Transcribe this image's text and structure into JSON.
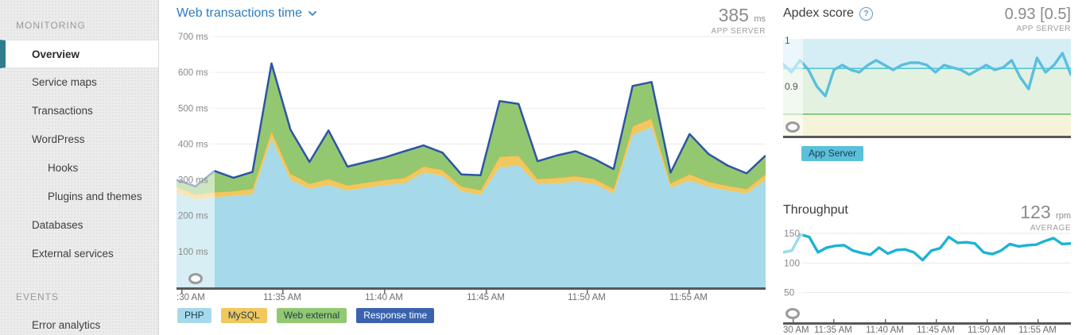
{
  "colors": {
    "accent_teal": "#2e7e8e",
    "title_link_blue": "#2e7bbf",
    "php_area": "#a6d9e9",
    "mysql_area": "#f0c85f",
    "mysql_edge": "#dcaf3c",
    "web_external_area": "#93c871",
    "response_line": "#2e55a3",
    "throughput_line": "#1cb3d4",
    "apdex_line": "#5abfdb",
    "apdex_target_line": "#3ec1c7",
    "apdex_lower_line": "#55b855",
    "band_cyan": "#d5eef6",
    "band_green": "#e3f1e1",
    "band_cream": "#f7f3da",
    "axis_dark": "#58585a",
    "gridline": "#eaeaea",
    "badge_app_server": "#5bc0d9"
  },
  "sidebar": {
    "sections": [
      {
        "header": "MONITORING",
        "items": [
          {
            "label": "Overview",
            "selected": true,
            "indent": false
          },
          {
            "label": "Service maps",
            "selected": false,
            "indent": false
          },
          {
            "label": "Transactions",
            "selected": false,
            "indent": false
          },
          {
            "label": "WordPress",
            "selected": false,
            "indent": false
          },
          {
            "label": "Hooks",
            "selected": false,
            "indent": true
          },
          {
            "label": "Plugins and themes",
            "selected": false,
            "indent": true
          },
          {
            "label": "Databases",
            "selected": false,
            "indent": false
          },
          {
            "label": "External services",
            "selected": false,
            "indent": false
          }
        ]
      },
      {
        "header": "EVENTS",
        "items": [
          {
            "label": "Error analytics",
            "selected": false,
            "indent": false
          }
        ]
      }
    ]
  },
  "web_transactions": {
    "title": "Web transactions time",
    "value": "385",
    "unit": "ms",
    "scope": "APP SERVER",
    "y_tick_labels": [
      "700 ms",
      "600 ms",
      "500 ms",
      "400 ms",
      "300 ms",
      "200 ms",
      "100 ms"
    ],
    "x_tick_labels": [
      ":30 AM",
      "11:35 AM",
      "11:40 AM",
      "11:45 AM",
      "11:50 AM",
      "11:55 AM"
    ],
    "legend": [
      "PHP",
      "MySQL",
      "Web external",
      "Response time"
    ]
  },
  "apdex": {
    "title": "Apdex score",
    "help": "?",
    "value": "0.93 [0.5]",
    "scope": "APP SERVER",
    "y_tick_labels": [
      "1",
      "0.9"
    ],
    "legend_badge": "App Server"
  },
  "throughput": {
    "title": "Throughput",
    "value": "123",
    "unit": "rpm",
    "scope": "AVERAGE",
    "y_tick_labels": [
      "150",
      "100",
      "50"
    ],
    "x_tick_labels": [
      "30 AM",
      "11:35 AM",
      "11:40 AM",
      "11:45 AM",
      "11:50 AM",
      "11:55 AM"
    ]
  },
  "chart_data": [
    {
      "id": "web_transactions_time",
      "type": "area",
      "stacked": true,
      "title": "Web transactions time",
      "ylabel": "ms",
      "ylim": [
        0,
        700
      ],
      "x_range": [
        "11:30 AM",
        "11:59 AM"
      ],
      "x_interval_minutes": 1,
      "legend_position": "bottom",
      "grid": true,
      "series": [
        {
          "name": "PHP",
          "values": [
            265,
            245,
            252,
            255,
            260,
            415,
            300,
            275,
            285,
            270,
            278,
            285,
            290,
            320,
            312,
            268,
            258,
            335,
            340,
            288,
            290,
            295,
            288,
            262,
            425,
            448,
            278,
            298,
            280,
            270,
            262,
            300
          ]
        },
        {
          "name": "MySQL",
          "values": [
            16,
            14,
            14,
            14,
            16,
            22,
            18,
            15,
            18,
            15,
            15,
            16,
            16,
            18,
            16,
            14,
            14,
            30,
            28,
            15,
            16,
            16,
            15,
            14,
            25,
            24,
            13,
            18,
            15,
            14,
            13,
            16
          ]
        },
        {
          "name": "Web external",
          "values": [
            19,
            23,
            59,
            37,
            46,
            188,
            122,
            60,
            135,
            52,
            57,
            62,
            74,
            58,
            48,
            33,
            41,
            155,
            144,
            49,
            62,
            69,
            55,
            54,
            112,
            101,
            29,
            112,
            77,
            56,
            43,
            52
          ]
        },
        {
          "name": "Response time",
          "role": "line",
          "values": [
            300,
            282,
            325,
            306,
            322,
            625,
            440,
            350,
            438,
            337,
            350,
            363,
            380,
            396,
            376,
            315,
            313,
            520,
            512,
            352,
            368,
            380,
            358,
            330,
            562,
            573,
            320,
            428,
            372,
            340,
            318,
            368
          ]
        }
      ]
    },
    {
      "id": "apdex_score",
      "type": "line",
      "title": "Apdex score",
      "ylim": [
        0.8,
        1.0
      ],
      "target_line": 0.938,
      "lower_line": 0.842,
      "x_range": [
        "11:30 AM",
        "11:59 AM"
      ],
      "grid": false,
      "series": [
        {
          "name": "App Server",
          "values": [
            0.947,
            0.93,
            0.955,
            0.935,
            0.9,
            0.88,
            0.935,
            0.945,
            0.935,
            0.93,
            0.945,
            0.955,
            0.945,
            0.935,
            0.945,
            0.95,
            0.95,
            0.945,
            0.93,
            0.945,
            0.94,
            0.935,
            0.925,
            0.935,
            0.945,
            0.935,
            0.94,
            0.955,
            0.92,
            0.895,
            0.96,
            0.93,
            0.945,
            0.97,
            0.925
          ]
        }
      ]
    },
    {
      "id": "throughput",
      "type": "line",
      "title": "Throughput",
      "ylabel": "rpm",
      "ylim": [
        0,
        150
      ],
      "x_range": [
        "11:30 AM",
        "11:59 AM"
      ],
      "grid": true,
      "series": [
        {
          "name": "Throughput",
          "values": [
            118,
            121,
            148,
            144,
            118,
            126,
            129,
            130,
            121,
            117,
            114,
            126,
            116,
            122,
            123,
            118,
            105,
            121,
            125,
            144,
            134,
            135,
            133,
            118,
            115,
            121,
            132,
            128,
            130,
            131,
            137,
            142,
            132,
            133
          ]
        }
      ]
    }
  ]
}
